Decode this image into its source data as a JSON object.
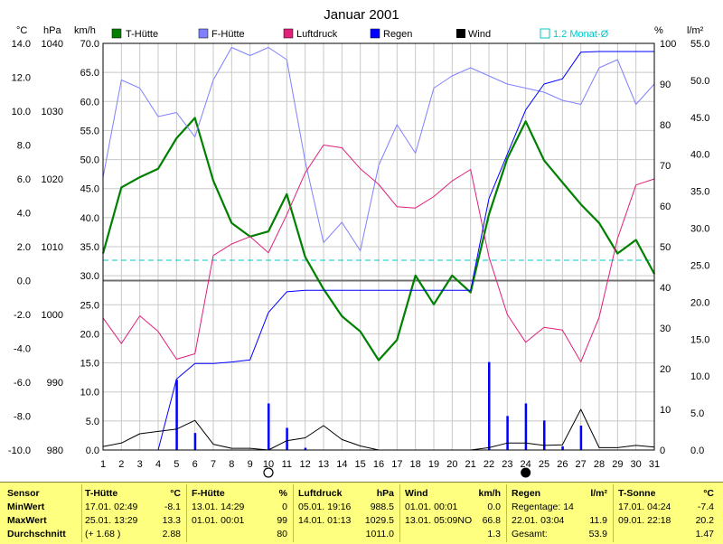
{
  "title": "Januar 2001",
  "axis_units": {
    "temp": "°C",
    "pressure": "hPa",
    "wind": "km/h",
    "humidity": "%",
    "rain": "l/m²"
  },
  "legend": [
    {
      "label": "T-Hütte",
      "color": "#008000"
    },
    {
      "label": "F-Hütte",
      "color": "#8080ff"
    },
    {
      "label": "Luftdruck",
      "color": "#e0207a"
    },
    {
      "label": "Regen",
      "color": "#0000ff"
    },
    {
      "label": "Wind",
      "color": "#000000"
    }
  ],
  "average_line": {
    "label": "1.2 Monat-Ø",
    "value": 1.2,
    "color": "#00c8c8"
  },
  "chart_data": {
    "type": "line",
    "title": "Januar 2001",
    "x": [
      1,
      2,
      3,
      4,
      5,
      6,
      7,
      8,
      9,
      10,
      11,
      12,
      13,
      14,
      15,
      16,
      17,
      18,
      19,
      20,
      21,
      22,
      23,
      24,
      25,
      26,
      27,
      28,
      29,
      30,
      31
    ],
    "axes": {
      "temp": {
        "range": [
          -10,
          14
        ],
        "ticks": [
          "14.0",
          "12.0",
          "10.0",
          "8.0",
          "6.0",
          "4.0",
          "2.0",
          "0.0",
          "-2.0",
          "-4.0",
          "-6.0",
          "-8.0",
          "-10.0"
        ]
      },
      "pressure": {
        "range": [
          980,
          1040
        ],
        "ticks": [
          "1040",
          "1030",
          "1020",
          "1010",
          "1000",
          "990",
          "980"
        ]
      },
      "wind": {
        "range": [
          0,
          70
        ],
        "ticks": [
          "70.0",
          "65.0",
          "60.0",
          "55.0",
          "50.0",
          "45.0",
          "40.0",
          "35.0",
          "30.0",
          "25.0",
          "20.0",
          "15.0",
          "10.0",
          "5.0",
          "0.0"
        ]
      },
      "humidity": {
        "range": [
          0,
          100
        ],
        "ticks": [
          "100",
          "90",
          "80",
          "70",
          "60",
          "50",
          "40",
          "30",
          "20",
          "10",
          "0"
        ]
      },
      "rain": {
        "range": [
          0,
          55
        ],
        "ticks": [
          "55.0",
          "50.0",
          "45.0",
          "40.0",
          "35.0",
          "30.0",
          "25.0",
          "20.0",
          "15.0",
          "10.0",
          "5.0",
          "0.0"
        ]
      }
    },
    "series": [
      {
        "name": "T-Hütte",
        "axis": "temp",
        "color": "#008000",
        "width": 2.2,
        "values": [
          1.6,
          5.5,
          6.1,
          6.6,
          8.4,
          9.6,
          5.9,
          3.4,
          2.6,
          2.9,
          5.1,
          1.4,
          -0.5,
          -2.1,
          -3.0,
          -4.7,
          -3.5,
          0.3,
          -1.4,
          0.3,
          -0.7,
          3.9,
          7.2,
          9.4,
          7.1,
          5.8,
          4.5,
          3.4,
          1.6,
          2.4,
          0.4
        ]
      },
      {
        "name": "F-Hütte",
        "axis": "humidity",
        "color": "#8080ff",
        "width": 1,
        "values": [
          67,
          91,
          89,
          82,
          83,
          77,
          91,
          99,
          97,
          99,
          96,
          71,
          51,
          56,
          49,
          70,
          80,
          73,
          89,
          92,
          94,
          92,
          90,
          89,
          88,
          86,
          85,
          94,
          96,
          85,
          90
        ]
      },
      {
        "name": "Luftdruck",
        "axis": "pressure",
        "color": "#e0207a",
        "width": 1,
        "values": [
          999.5,
          995.7,
          999.8,
          997.5,
          993.4,
          994.2,
          1008.7,
          1010.4,
          1011.5,
          1009.1,
          1014.7,
          1020.9,
          1025.0,
          1024.6,
          1021.5,
          1019.2,
          1015.9,
          1015.7,
          1017.4,
          1019.7,
          1021.4,
          1008.5,
          1000.0,
          995.9,
          998.1,
          997.7,
          993.0,
          999.6,
          1011.2,
          1019.1,
          1020.0
        ]
      },
      {
        "name": "Regen",
        "axis": "rain",
        "color": "#0000ff",
        "width": 1,
        "values": [
          null,
          null,
          null,
          0,
          9.6,
          11.7,
          11.7,
          11.9,
          12.2,
          18.6,
          21.4,
          21.6,
          21.6,
          21.6,
          21.6,
          21.6,
          21.6,
          21.6,
          21.6,
          21.6,
          21.6,
          34.0,
          40.0,
          46.0,
          49.5,
          50.2,
          53.8,
          53.9,
          53.9,
          53.9,
          53.9
        ]
      },
      {
        "name": "Wind",
        "axis": "wind",
        "color": "#000000",
        "width": 1,
        "values": [
          0.6,
          1.2,
          2.8,
          3.2,
          3.6,
          5.1,
          1.0,
          0.3,
          0.3,
          0.0,
          1.6,
          2.1,
          4.2,
          1.8,
          0.7,
          0,
          0,
          0,
          0,
          0,
          0,
          0.4,
          1.2,
          1.2,
          0.8,
          0.9,
          7.0,
          0.4,
          0.4,
          0.8,
          0.5
        ]
      }
    ],
    "bars": {
      "name": "Regen-Tage",
      "axis": "rain",
      "color": "#0000ff",
      "values": [
        0,
        0,
        0,
        0,
        9.5,
        2.3,
        0,
        0,
        0,
        6.3,
        3.0,
        0.3,
        0,
        0,
        0,
        0,
        0,
        0,
        0,
        0,
        0,
        11.9,
        4.6,
        6.3,
        4.0,
        0.5,
        3.3,
        0,
        0,
        0,
        0
      ]
    },
    "moon_new": 10,
    "moon_full": 24,
    "grid": true
  },
  "stats": {
    "sensor": {
      "header": "Sensor",
      "rows": [
        "MinWert",
        "MaxWert",
        "Durchschnitt"
      ]
    },
    "t_huette": {
      "header": "T-Hütte",
      "unit": "°C",
      "rows": [
        {
          "ts": "17.01.  02:49",
          "val": "-8.1"
        },
        {
          "ts": "25.01.  13:29",
          "val": "13.3"
        },
        {
          "ts": "(+ 1.68 )",
          "val": "2.88"
        }
      ]
    },
    "f_huette": {
      "header": "F-Hütte",
      "unit": "%",
      "rows": [
        {
          "ts": "13.01.  14:29",
          "val": "0"
        },
        {
          "ts": "01.01.  00:01",
          "val": "99"
        },
        {
          "ts": "",
          "val": "80"
        }
      ]
    },
    "luftdruck": {
      "header": "Luftdruck",
      "unit": "hPa",
      "rows": [
        {
          "ts": "05.01.  19:16",
          "val": "988.5"
        },
        {
          "ts": "14.01.  01:13",
          "val": "1029.5"
        },
        {
          "ts": "",
          "val": "1011.0"
        }
      ]
    },
    "wind": {
      "header": "Wind",
      "unit": "km/h",
      "rows": [
        {
          "ts": "01.01.  00:01",
          "val": "0.0"
        },
        {
          "ts": "13.01.  05:09NO",
          "val": "66.8"
        },
        {
          "ts": "",
          "val": "1.3"
        }
      ]
    },
    "regen": {
      "header": "Regen",
      "unit": "l/m²",
      "rows": [
        {
          "ts": "Regentage: 14",
          "val": ""
        },
        {
          "ts": "22.01.  03:04",
          "val": "11.9"
        },
        {
          "ts": "Gesamt:",
          "val": "53.9"
        }
      ]
    },
    "t_sonne": {
      "header": "T-Sonne",
      "unit": "°C",
      "rows": [
        {
          "ts": "17.01.  04:24",
          "val": "-7.4"
        },
        {
          "ts": "09.01.  22:18",
          "val": "20.2"
        },
        {
          "ts": "",
          "val": "1.47"
        }
      ]
    }
  }
}
